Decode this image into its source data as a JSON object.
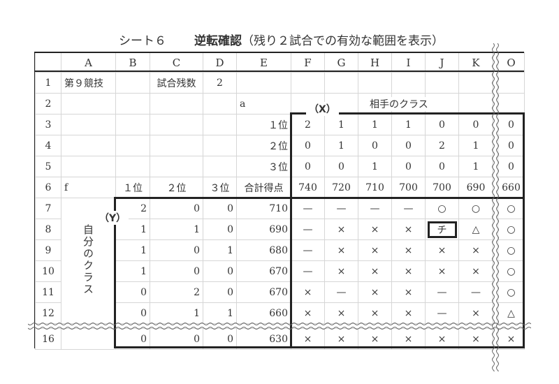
{
  "title": {
    "sheet": "シート６",
    "main": "逆転確認",
    "sub": "（残り２試合での有効な範囲を表示）"
  },
  "columns": [
    "A",
    "B",
    "C",
    "D",
    "E",
    "F",
    "G",
    "H",
    "I",
    "J",
    "K",
    "O"
  ],
  "labels": {
    "x": "（X）",
    "y": "（Y）",
    "opponent": "相手のクラス",
    "own": "自分のクラス"
  },
  "rows": [
    {
      "n": "1",
      "cells": [
        "第９競技",
        "",
        "試合残数",
        "2",
        "",
        "",
        "",
        "",
        "",
        "",
        "",
        ""
      ]
    },
    {
      "n": "2",
      "cells": [
        "",
        "",
        "",
        "",
        "a",
        "",
        "",
        "",
        "",
        "",
        "",
        ""
      ]
    },
    {
      "n": "3",
      "cells": [
        "",
        "",
        "",
        "",
        "１位",
        "2",
        "1",
        "1",
        "1",
        "0",
        "0",
        "0"
      ]
    },
    {
      "n": "4",
      "cells": [
        "",
        "",
        "",
        "",
        "２位",
        "0",
        "1",
        "0",
        "0",
        "2",
        "1",
        "0"
      ]
    },
    {
      "n": "5",
      "cells": [
        "",
        "",
        "",
        "",
        "３位",
        "0",
        "0",
        "1",
        "0",
        "0",
        "1",
        "0"
      ]
    },
    {
      "n": "6",
      "cells": [
        "f",
        "１位",
        "２位",
        "３位",
        "合計得点",
        "740",
        "720",
        "710",
        "700",
        "700",
        "690",
        "660"
      ]
    },
    {
      "n": "7",
      "cells": [
        "",
        "2",
        "0",
        "0",
        "710",
        "—",
        "—",
        "—",
        "—",
        "○",
        "○",
        "○"
      ]
    },
    {
      "n": "8",
      "cells": [
        "",
        "1",
        "1",
        "0",
        "690",
        "—",
        "×",
        "×",
        "×",
        "チ",
        "△",
        "○"
      ]
    },
    {
      "n": "9",
      "cells": [
        "",
        "1",
        "0",
        "1",
        "680",
        "—",
        "×",
        "×",
        "×",
        "×",
        "×",
        "○"
      ]
    },
    {
      "n": "10",
      "cells": [
        "",
        "1",
        "0",
        "0",
        "670",
        "—",
        "×",
        "×",
        "×",
        "×",
        "×",
        "○"
      ]
    },
    {
      "n": "11",
      "cells": [
        "",
        "0",
        "2",
        "0",
        "670",
        "×",
        "—",
        "×",
        "×",
        "—",
        "—",
        "○"
      ]
    },
    {
      "n": "12",
      "cells": [
        "",
        "0",
        "1",
        "1",
        "660",
        "×",
        "×",
        "×",
        "×",
        "—",
        "×",
        "△"
      ]
    },
    {
      "n": "16",
      "cells": [
        "",
        "0",
        "0",
        "0",
        "630",
        "×",
        "×",
        "×",
        "×",
        "×",
        "×",
        "×"
      ]
    }
  ]
}
